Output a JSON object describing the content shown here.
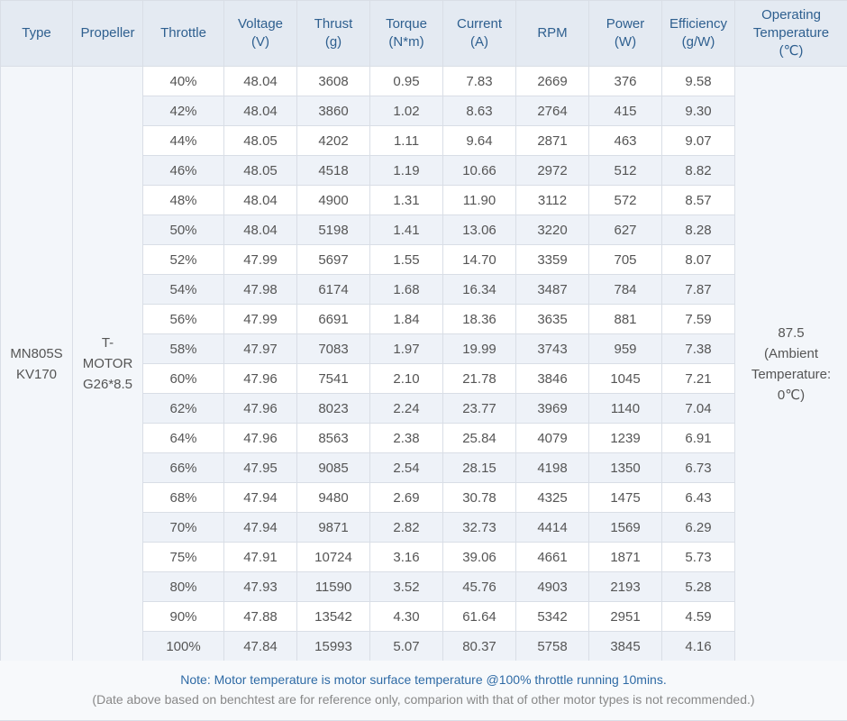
{
  "headers": [
    {
      "key": "type",
      "label": "Type",
      "unit": ""
    },
    {
      "key": "propeller",
      "label": "Propeller",
      "unit": ""
    },
    {
      "key": "throttle",
      "label": "Throttle",
      "unit": ""
    },
    {
      "key": "voltage",
      "label": "Voltage",
      "unit": "(V)"
    },
    {
      "key": "thrust",
      "label": "Thrust",
      "unit": "(g)"
    },
    {
      "key": "torque",
      "label": "Torque",
      "unit": "(N*m)"
    },
    {
      "key": "current",
      "label": "Current",
      "unit": "(A)"
    },
    {
      "key": "rpm",
      "label": "RPM",
      "unit": ""
    },
    {
      "key": "power",
      "label": "Power",
      "unit": "(W)"
    },
    {
      "key": "efficiency",
      "label": "Efficiency",
      "unit": "(g/W)"
    },
    {
      "key": "temperature",
      "label": "Operating Temperature",
      "unit": "(℃)"
    }
  ],
  "motor_type": {
    "line1": "MN805S",
    "line2": "KV170"
  },
  "propeller": {
    "line1": "T-",
    "line2": "MOTOR",
    "line3": "G26*8.5"
  },
  "operating_temperature": {
    "value": "87.5",
    "line2": "(Ambient",
    "line3": "Temperature:",
    "line4": "0℃)"
  },
  "rows": [
    [
      "40%",
      "48.04",
      "3608",
      "0.95",
      "7.83",
      "2669",
      "376",
      "9.58"
    ],
    [
      "42%",
      "48.04",
      "3860",
      "1.02",
      "8.63",
      "2764",
      "415",
      "9.30"
    ],
    [
      "44%",
      "48.05",
      "4202",
      "1.11",
      "9.64",
      "2871",
      "463",
      "9.07"
    ],
    [
      "46%",
      "48.05",
      "4518",
      "1.19",
      "10.66",
      "2972",
      "512",
      "8.82"
    ],
    [
      "48%",
      "48.04",
      "4900",
      "1.31",
      "11.90",
      "3112",
      "572",
      "8.57"
    ],
    [
      "50%",
      "48.04",
      "5198",
      "1.41",
      "13.06",
      "3220",
      "627",
      "8.28"
    ],
    [
      "52%",
      "47.99",
      "5697",
      "1.55",
      "14.70",
      "3359",
      "705",
      "8.07"
    ],
    [
      "54%",
      "47.98",
      "6174",
      "1.68",
      "16.34",
      "3487",
      "784",
      "7.87"
    ],
    [
      "56%",
      "47.99",
      "6691",
      "1.84",
      "18.36",
      "3635",
      "881",
      "7.59"
    ],
    [
      "58%",
      "47.97",
      "7083",
      "1.97",
      "19.99",
      "3743",
      "959",
      "7.38"
    ],
    [
      "60%",
      "47.96",
      "7541",
      "2.10",
      "21.78",
      "3846",
      "1045",
      "7.21"
    ],
    [
      "62%",
      "47.96",
      "8023",
      "2.24",
      "23.77",
      "3969",
      "1140",
      "7.04"
    ],
    [
      "64%",
      "47.96",
      "8563",
      "2.38",
      "25.84",
      "4079",
      "1239",
      "6.91"
    ],
    [
      "66%",
      "47.95",
      "9085",
      "2.54",
      "28.15",
      "4198",
      "1350",
      "6.73"
    ],
    [
      "68%",
      "47.94",
      "9480",
      "2.69",
      "30.78",
      "4325",
      "1475",
      "6.43"
    ],
    [
      "70%",
      "47.94",
      "9871",
      "2.82",
      "32.73",
      "4414",
      "1569",
      "6.29"
    ],
    [
      "75%",
      "47.91",
      "10724",
      "3.16",
      "39.06",
      "4661",
      "1871",
      "5.73"
    ],
    [
      "80%",
      "47.93",
      "11590",
      "3.52",
      "45.76",
      "4903",
      "2193",
      "5.28"
    ],
    [
      "90%",
      "47.88",
      "13542",
      "4.30",
      "61.64",
      "5342",
      "2951",
      "4.59"
    ],
    [
      "100%",
      "47.84",
      "15993",
      "5.07",
      "80.37",
      "5758",
      "3845",
      "4.16"
    ]
  ],
  "notes": {
    "note": "Note: Motor temperature is motor surface temperature @100% throttle running 10mins.",
    "disclaimer": "(Date above based on benchtest are for reference only, comparion with that of other motor types is not recommended.)"
  },
  "colors": {
    "header_bg": "#e4eaf2",
    "header_text": "#2e5f8f",
    "stripe": "#eef2f8",
    "note_text": "#2e6aa5"
  }
}
